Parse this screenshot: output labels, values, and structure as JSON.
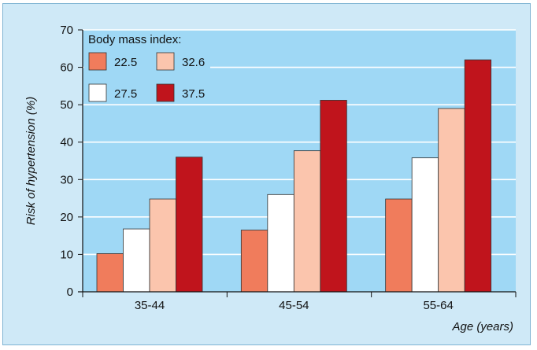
{
  "chart_data": {
    "type": "bar",
    "title": "",
    "xlabel": "Age (years)",
    "ylabel": "Risk of hypertension (%)",
    "ylim": [
      0,
      70
    ],
    "yticks": [
      0,
      10,
      20,
      30,
      40,
      50,
      60,
      70
    ],
    "categories": [
      "35-44",
      "45-54",
      "55-64"
    ],
    "legend_title": "Body mass index:",
    "series": [
      {
        "name": "22.5",
        "color": "#f07c5c",
        "values": [
          10.2,
          16.5,
          24.8
        ]
      },
      {
        "name": "27.5",
        "color": "#ffffff",
        "values": [
          16.8,
          26.0,
          35.8
        ]
      },
      {
        "name": "32.6",
        "color": "#fbc5ad",
        "values": [
          24.8,
          37.7,
          49.0
        ]
      },
      {
        "name": "37.5",
        "color": "#c0141c",
        "values": [
          36.0,
          51.2,
          62.0
        ]
      }
    ],
    "legend_order": [
      "22.5",
      "32.6",
      "27.5",
      "37.5"
    ],
    "plot_background": "#9fd8f5",
    "grid": true
  }
}
